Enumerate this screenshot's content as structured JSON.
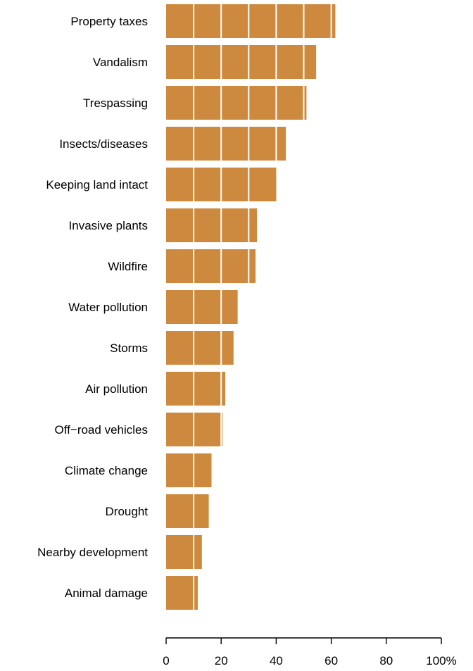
{
  "chart_data": {
    "type": "bar",
    "orientation": "horizontal",
    "categories": [
      "Property taxes",
      "Vandalism",
      "Trespassing",
      "Insects/diseases",
      "Keeping land intact",
      "Invasive plants",
      "Wildfire",
      "Water pollution",
      "Storms",
      "Air pollution",
      "Off−road vehicles",
      "Climate change",
      "Drought",
      "Nearby development",
      "Animal damage"
    ],
    "values": [
      61.5,
      54.5,
      51,
      43.5,
      40,
      33,
      32.5,
      26,
      24.5,
      21.5,
      20.5,
      16.5,
      15.5,
      13,
      11.5
    ],
    "xlim": [
      0,
      100
    ],
    "x_ticks": [
      0,
      20,
      40,
      60,
      80,
      100
    ],
    "x_tick_labels": [
      "0",
      "20",
      "40",
      "60",
      "80",
      "100%"
    ],
    "gridlines_at": [
      10,
      20,
      30,
      40,
      50,
      60
    ],
    "grid": "white vertical lines drawn over bars",
    "title": "",
    "xlabel": "",
    "ylabel": "",
    "legend": "none",
    "bar_color": "#CD8A3E",
    "gridline_color": "#FFFFFF"
  }
}
